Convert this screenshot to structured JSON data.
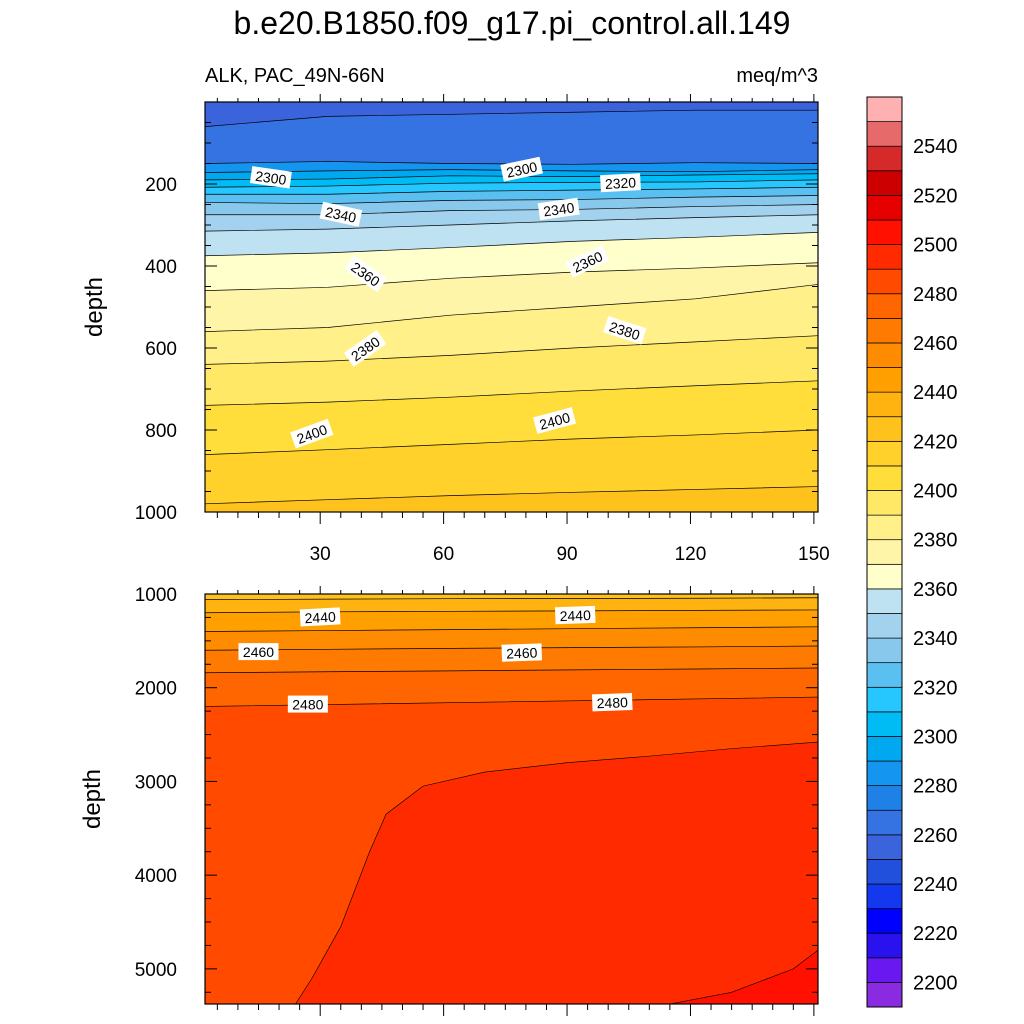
{
  "header": {
    "title": "b.e20.B1850.f09_g17.pi_control.all.149",
    "left_label": "ALK, PAC_49N-66N",
    "right_label": "meq/m^3"
  },
  "chart_data": {
    "type": "heatmap",
    "variable": "ALK",
    "region": "PAC_49N-66N",
    "units": "meq/m^3",
    "contour_levels": [
      2190,
      2200,
      2210,
      2220,
      2230,
      2240,
      2250,
      2260,
      2270,
      2280,
      2290,
      2300,
      2310,
      2320,
      2330,
      2340,
      2350,
      2360,
      2370,
      2380,
      2390,
      2400,
      2410,
      2420,
      2430,
      2440,
      2450,
      2460,
      2470,
      2480,
      2490,
      2500,
      2510,
      2520,
      2530,
      2540,
      2550,
      2560
    ],
    "colorbar": {
      "tick_labels": [
        "2200",
        "2220",
        "2240",
        "2260",
        "2280",
        "2300",
        "2320",
        "2340",
        "2360",
        "2380",
        "2400",
        "2420",
        "2440",
        "2460",
        "2480",
        "2500",
        "2520",
        "2540"
      ],
      "colors": [
        "#8a2be2",
        "#6a18f0",
        "#2a12ee",
        "#0000ff",
        "#1438ee",
        "#2150dc",
        "#3a63dc",
        "#3573e2",
        "#1f80e6",
        "#1496f0",
        "#00a8f0",
        "#00bcf5",
        "#26c6ff",
        "#5ac0f2",
        "#88c8ec",
        "#a3d2ee",
        "#bee2f2",
        "#ffffcc",
        "#fff5a8",
        "#fff08a",
        "#ffe866",
        "#ffde3c",
        "#ffd12a",
        "#ffc21c",
        "#ffb310",
        "#ffa000",
        "#ff8c00",
        "#ff7a00",
        "#ff6600",
        "#ff4a00",
        "#ff2a00",
        "#ff1000",
        "#e60000",
        "#cc0000",
        "#d62a2a",
        "#e66a6a",
        "#ffb0b0"
      ]
    },
    "panels": [
      {
        "x_ticks": [
          "30",
          "60",
          "90",
          "120",
          "150"
        ],
        "y_ticks": [
          "200",
          "400",
          "600",
          "800",
          "1000"
        ],
        "xlim": [
          2,
          151
        ],
        "ylim": [
          0,
          1000
        ],
        "ylabel": "depth",
        "y_reversed": true,
        "contours": [
          {
            "level": 2260,
            "depths": [
              60,
              35,
              30,
              25,
              20,
              20
            ]
          },
          {
            "level": 2280,
            "depths": [
              150,
              145,
              150,
              152,
              148,
              150
            ]
          },
          {
            "level": 2290,
            "depths": [
              172,
              168,
              165,
              168,
              170,
              165
            ]
          },
          {
            "level": 2300,
            "depths": [
              190,
              188,
              180,
              182,
              178,
              175
            ]
          },
          {
            "level": 2310,
            "depths": [
              208,
              205,
              198,
              196,
              195,
              190
            ]
          },
          {
            "level": 2320,
            "depths": [
              225,
              225,
              218,
              215,
              212,
              208
            ]
          },
          {
            "level": 2330,
            "depths": [
              245,
              248,
              240,
              238,
              232,
              228
            ]
          },
          {
            "level": 2340,
            "depths": [
              275,
              275,
              265,
              262,
              255,
              250
            ]
          },
          {
            "level": 2350,
            "depths": [
              315,
              310,
              300,
              290,
              282,
              275
            ]
          },
          {
            "level": 2360,
            "depths": [
              375,
              368,
              355,
              340,
              330,
              318
            ]
          },
          {
            "level": 2370,
            "depths": [
              460,
              452,
              430,
              415,
              405,
              392
            ]
          },
          {
            "level": 2380,
            "depths": [
              560,
              550,
              520,
              500,
              480,
              445
            ]
          },
          {
            "level": 2390,
            "depths": [
              640,
              632,
              618,
              600,
              585,
              570
            ]
          },
          {
            "level": 2400,
            "depths": [
              740,
              732,
              720,
              705,
              692,
              680
            ]
          },
          {
            "level": 2410,
            "depths": [
              860,
              848,
              835,
              822,
              812,
              800
            ]
          },
          {
            "level": 2420,
            "depths": [
              980,
              970,
              960,
              952,
              945,
              938
            ]
          }
        ],
        "contour_labels": [
          {
            "text": "2300",
            "x": 18,
            "depth": 185,
            "angle": 8
          },
          {
            "text": "2300",
            "x": 79,
            "depth": 165,
            "angle": -12
          },
          {
            "text": "2320",
            "x": 103,
            "depth": 198,
            "angle": -3
          },
          {
            "text": "2340",
            "x": 35,
            "depth": 275,
            "angle": 12
          },
          {
            "text": "2340",
            "x": 88,
            "depth": 262,
            "angle": -8
          },
          {
            "text": "2360",
            "x": 41,
            "depth": 420,
            "angle": 35
          },
          {
            "text": "2360",
            "x": 95,
            "depth": 390,
            "angle": -25
          },
          {
            "text": "2380",
            "x": 41,
            "depth": 602,
            "angle": -35
          },
          {
            "text": "2380",
            "x": 104,
            "depth": 558,
            "angle": 18
          },
          {
            "text": "2400",
            "x": 28,
            "depth": 810,
            "angle": -20
          },
          {
            "text": "2400",
            "x": 87,
            "depth": 778,
            "angle": -15
          }
        ]
      },
      {
        "x_ticks": [],
        "y_ticks": [
          "1000",
          "2000",
          "3000",
          "4000",
          "5000"
        ],
        "xlim": [
          2,
          151
        ],
        "ylim": [
          1000,
          5375
        ],
        "ylabel": "depth",
        "y_reversed": true,
        "contours": [
          {
            "level": 2430,
            "depths": [
              1060,
              1055,
              1050,
              1048,
              1045,
              1040
            ]
          },
          {
            "level": 2440,
            "depths": [
              1200,
              1190,
              1185,
              1180,
              1175,
              1170
            ]
          },
          {
            "level": 2450,
            "depths": [
              1400,
              1390,
              1380,
              1370,
              1360,
              1350
            ]
          },
          {
            "level": 2460,
            "depths": [
              1600,
              1590,
              1580,
              1572,
              1565,
              1555
            ]
          },
          {
            "level": 2470,
            "depths": [
              1840,
              1830,
              1820,
              1810,
              1800,
              1790
            ]
          },
          {
            "level": 2480,
            "depths": [
              2200,
              2180,
              2160,
              2140,
              2120,
              2100
            ]
          }
        ],
        "contour_labels": [
          {
            "text": "2440",
            "x": 30,
            "depth": 1250,
            "angle": -3
          },
          {
            "text": "2440",
            "x": 92,
            "depth": 1230,
            "angle": -2
          },
          {
            "text": "2460",
            "x": 15,
            "depth": 1620,
            "angle": 0
          },
          {
            "text": "2460",
            "x": 79,
            "depth": 1630,
            "angle": -2
          },
          {
            "text": "2480",
            "x": 27,
            "depth": 2180,
            "angle": 0
          },
          {
            "text": "2480",
            "x": 101,
            "depth": 2160,
            "angle": -2
          }
        ],
        "regions": [
          {
            "level": 2490,
            "description": "deep water above 2490 meq/m^3",
            "boundary": [
              [
                24,
                5375
              ],
              [
                28,
                5100
              ],
              [
                35,
                4550
              ],
              [
                42,
                3750
              ],
              [
                46,
                3350
              ],
              [
                55,
                3050
              ],
              [
                70,
                2900
              ],
              [
                90,
                2800
              ],
              [
                110,
                2730
              ],
              [
                130,
                2650
              ],
              [
                151,
                2580
              ]
            ]
          },
          {
            "level": 2500,
            "description": "bottom water above 2500 meq/m^3",
            "boundary": [
              [
                115,
                5375
              ],
              [
                130,
                5250
              ],
              [
                145,
                5000
              ],
              [
                151,
                4800
              ]
            ]
          }
        ]
      }
    ]
  }
}
